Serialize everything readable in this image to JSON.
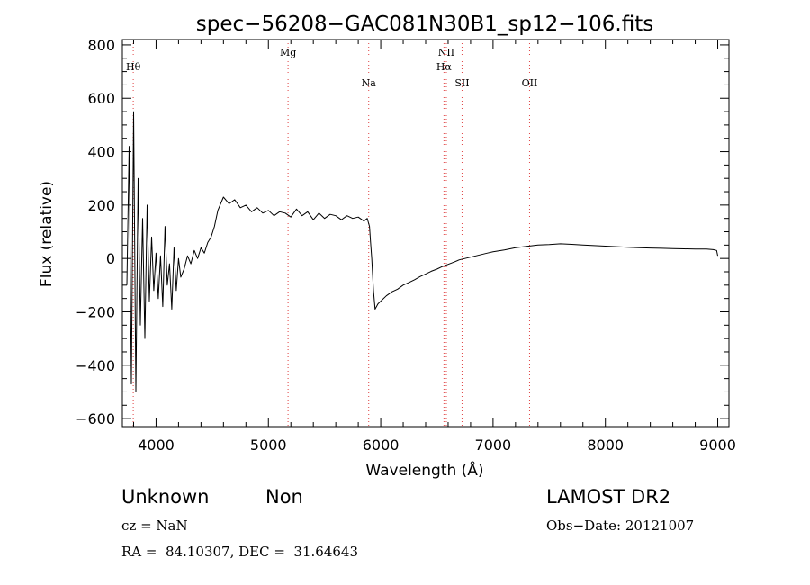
{
  "chart_data": {
    "type": "line",
    "title": "spec−56208−GAC081N30B1_sp12−106.fits",
    "xlabel": "Wavelength (Å)",
    "ylabel": "Flux (relative)",
    "xlim": [
      3700,
      9100
    ],
    "ylim": [
      -630,
      820
    ],
    "x_ticks": [
      4000,
      5000,
      6000,
      7000,
      8000,
      9000
    ],
    "y_ticks": [
      -600,
      -400,
      -200,
      0,
      200,
      400,
      600,
      800
    ],
    "y_tick_labels": [
      "−600",
      "−400",
      "−200",
      "0",
      "200",
      "400",
      "600",
      "800"
    ],
    "grid": false,
    "series": [
      {
        "color": "#000000",
        "x": [
          3740,
          3760,
          3780,
          3800,
          3820,
          3840,
          3860,
          3880,
          3900,
          3920,
          3940,
          3960,
          3980,
          4000,
          4020,
          4040,
          4060,
          4080,
          4100,
          4120,
          4140,
          4160,
          4180,
          4200,
          4220,
          4250,
          4280,
          4310,
          4340,
          4370,
          4400,
          4430,
          4460,
          4490,
          4520,
          4550,
          4600,
          4650,
          4700,
          4750,
          4800,
          4850,
          4900,
          4950,
          5000,
          5050,
          5100,
          5150,
          5200,
          5250,
          5300,
          5350,
          5400,
          5450,
          5500,
          5550,
          5600,
          5650,
          5700,
          5750,
          5800,
          5850,
          5880,
          5900,
          5910,
          5920,
          5935,
          5950,
          5975,
          6000,
          6050,
          6100,
          6150,
          6200,
          6250,
          6300,
          6350,
          6400,
          6450,
          6500,
          6550,
          6600,
          6650,
          6700,
          6750,
          6800,
          6850,
          6900,
          6950,
          7000,
          7100,
          7200,
          7300,
          7400,
          7500,
          7600,
          7700,
          7800,
          7900,
          8000,
          8100,
          8200,
          8300,
          8400,
          8500,
          8600,
          8700,
          8800,
          8900,
          8960,
          8990,
          9000
        ],
        "y": [
          -100,
          420,
          -470,
          550,
          -500,
          300,
          -250,
          150,
          -300,
          200,
          -160,
          80,
          -120,
          20,
          -150,
          10,
          -180,
          120,
          -100,
          -20,
          -190,
          40,
          -120,
          0,
          -70,
          -40,
          10,
          -20,
          30,
          0,
          40,
          20,
          60,
          80,
          120,
          180,
          230,
          205,
          220,
          190,
          200,
          175,
          190,
          170,
          180,
          160,
          175,
          170,
          155,
          185,
          160,
          175,
          145,
          170,
          150,
          165,
          160,
          145,
          160,
          150,
          155,
          140,
          150,
          120,
          60,
          0,
          -120,
          -190,
          -170,
          -160,
          -140,
          -125,
          -115,
          -100,
          -90,
          -80,
          -68,
          -58,
          -48,
          -40,
          -30,
          -22,
          -14,
          -5,
          0,
          5,
          10,
          15,
          20,
          25,
          32,
          40,
          45,
          50,
          52,
          55,
          53,
          50,
          48,
          46,
          44,
          42,
          40,
          39,
          38,
          37,
          36,
          35,
          35,
          33,
          30,
          10
        ]
      }
    ],
    "lines": [
      {
        "label": "Hθ",
        "x": 3797,
        "row": 1
      },
      {
        "label": "Mg",
        "x": 5175,
        "row": 0
      },
      {
        "label": "Na",
        "x": 5893,
        "row": 2
      },
      {
        "label": "NII",
        "x": 6584,
        "row": 0
      },
      {
        "label": "Hα",
        "x": 6563,
        "row": 1
      },
      {
        "label": "SII",
        "x": 6724,
        "row": 2
      },
      {
        "label": "OII",
        "x": 7325,
        "row": 2
      }
    ]
  },
  "info": {
    "class": "Unknown",
    "subclass": "Non",
    "cz": "cz = NaN",
    "coords": "RA =  84.10307, DEC =  31.64643",
    "survey": "LAMOST DR2",
    "obs_date": "Obs−Date: 20121007"
  },
  "colors": {
    "line_marker": "#e04040",
    "spectrum": "#000000",
    "axes": "#000000"
  }
}
